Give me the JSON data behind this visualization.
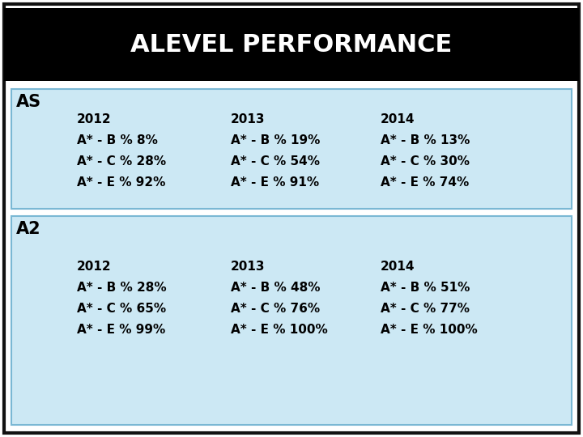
{
  "title": "ALEVEL PERFORMANCE",
  "title_bg": "#000000",
  "title_color": "#ffffff",
  "title_fontsize": 22,
  "outer_bg": "#ffffff",
  "box_bg": "#cce8f4",
  "box_border": "#7ab8d4",
  "as_label": "AS",
  "a2_label": "A2",
  "years": [
    "2012",
    "2013",
    "2014"
  ],
  "as_data": [
    [
      "A* - B % 8%",
      "A* - B % 19%",
      "A* - B % 13%"
    ],
    [
      "A* - C % 28%",
      "A* - C % 54%",
      "A* - C % 30%"
    ],
    [
      "A* - E % 92%",
      "A* - E % 91%",
      "A* - E % 74%"
    ]
  ],
  "a2_data": [
    [
      "A* - B % 28%",
      "A* - B % 48%",
      "A* - B % 51%"
    ],
    [
      "A* - C % 65%",
      "A* - C % 76%",
      "A* - C % 77%"
    ],
    [
      "A* - E % 99%",
      "A* - E % 100%",
      "A* - E % 100%"
    ]
  ],
  "as_label_fontsize": 15,
  "a2_label_fontsize": 15,
  "year_fontsize": 11,
  "data_fontsize": 11
}
